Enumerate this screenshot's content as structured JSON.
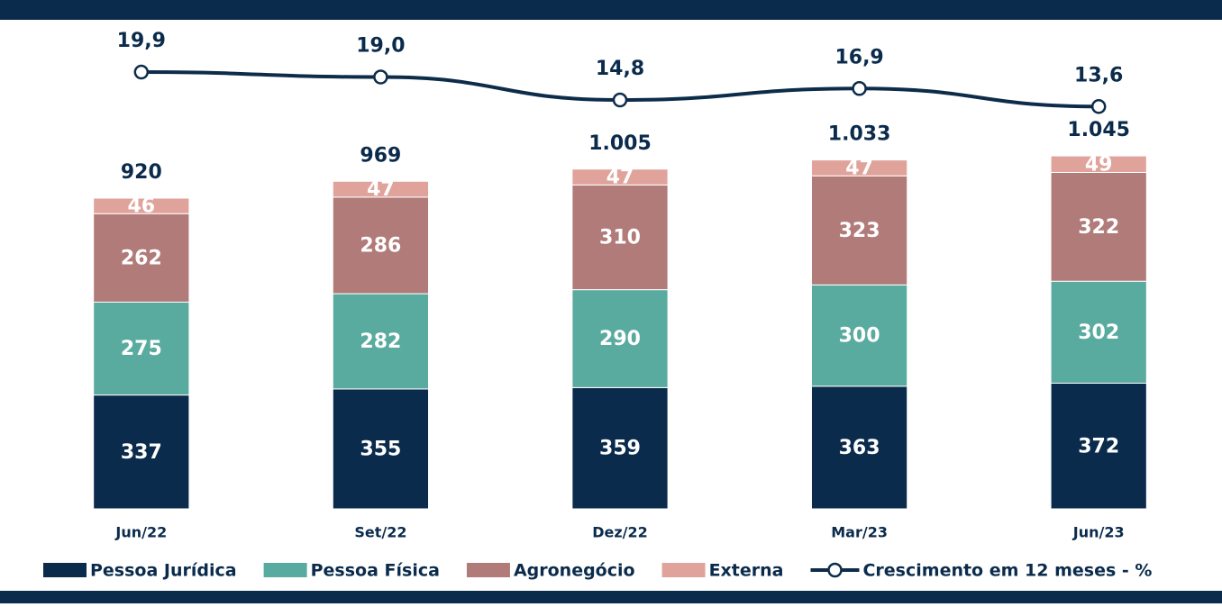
{
  "chart_data": {
    "type": "stacked-bar-line",
    "categories": [
      "Jun/22",
      "Set/22",
      "Dez/22",
      "Mar/23",
      "Jun/23"
    ],
    "series": [
      {
        "name": "Pessoa Jurídica",
        "color": "#0b2b4c",
        "values": [
          337,
          355,
          359,
          363,
          372
        ]
      },
      {
        "name": "Pessoa Física",
        "color": "#5aab9f",
        "values": [
          275,
          282,
          290,
          300,
          302
        ]
      },
      {
        "name": "Agronegócio",
        "color": "#b17b7a",
        "values": [
          262,
          286,
          310,
          323,
          322
        ]
      },
      {
        "name": "Externa",
        "color": "#e0a39b",
        "values": [
          46,
          47,
          47,
          47,
          49
        ]
      },
      {
        "name": "Crescimento em 12 meses - %",
        "color": "#0d2c4a",
        "axis": "y2",
        "values": [
          19.9,
          19.0,
          14.8,
          16.9,
          13.6
        ],
        "value_labels": [
          "19,9",
          "19,0",
          "14,8",
          "16,9",
          "13,6"
        ]
      }
    ],
    "totals": {
      "values": [
        920,
        969,
        1005,
        1033,
        1045
      ],
      "value_labels": [
        "920",
        "969",
        "1.005",
        "1.033",
        "1.045"
      ]
    },
    "ylim": [
      0,
      1400
    ],
    "y2lim": [
      -60,
      26.5
    ]
  }
}
